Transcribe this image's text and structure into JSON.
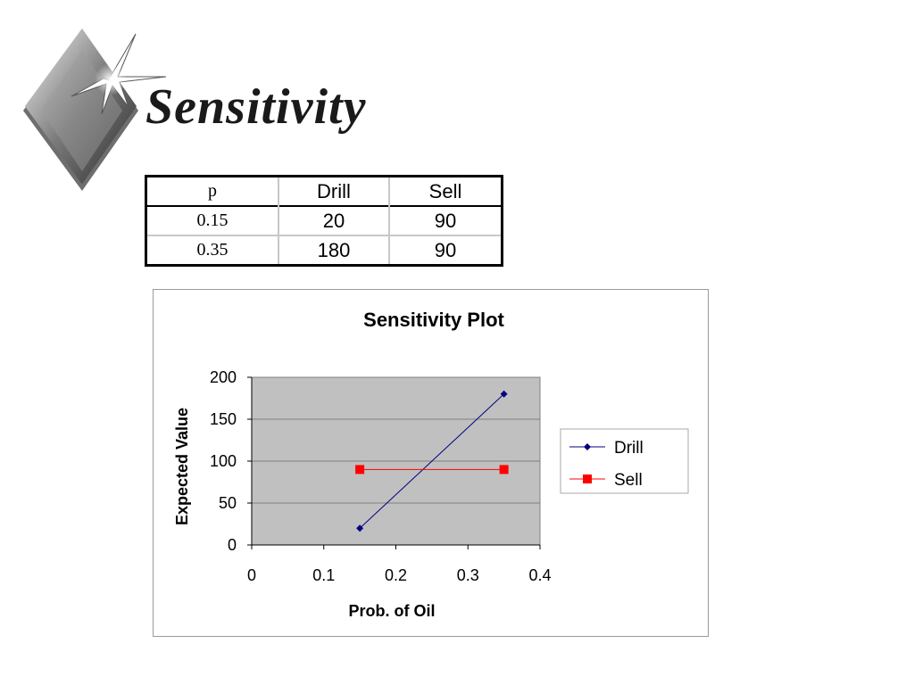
{
  "slide": {
    "title": "Sensitivity"
  },
  "table": {
    "headers": [
      "p",
      "Drill",
      "Sell"
    ],
    "rows": [
      [
        "0.15",
        "20",
        "90"
      ],
      [
        "0.35",
        "180",
        "90"
      ]
    ]
  },
  "chart_data": {
    "type": "line",
    "title": "Sensitivity Plot",
    "xlabel": "Prob. of Oil",
    "ylabel": "Expected Value",
    "xlim": [
      0,
      0.4
    ],
    "ylim": [
      0,
      200
    ],
    "xticks": [
      "0",
      "0.1",
      "0.2",
      "0.3",
      "0.4"
    ],
    "yticks": [
      "0",
      "50",
      "100",
      "150",
      "200"
    ],
    "grid": true,
    "legend_position": "right",
    "plot_background": "#c0c0c0",
    "series": [
      {
        "name": "Drill",
        "x": [
          0.15,
          0.35
        ],
        "y": [
          20,
          180
        ],
        "color": "#000080",
        "marker": "diamond"
      },
      {
        "name": "Sell",
        "x": [
          0.15,
          0.35
        ],
        "y": [
          90,
          90
        ],
        "color": "#ff0000",
        "marker": "square"
      }
    ]
  }
}
